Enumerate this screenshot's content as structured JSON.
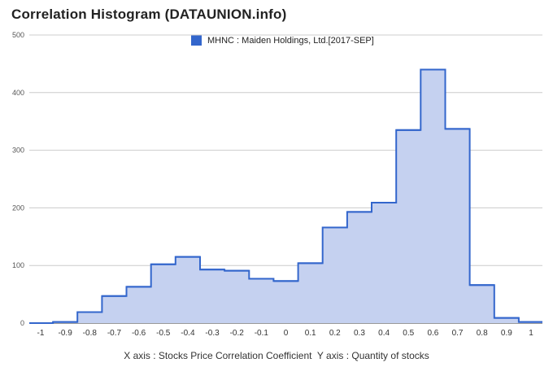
{
  "title": "Correlation Histogram (DATAUNION.info)",
  "legend_label": "MHNC : Maiden Holdings, Ltd.[2017-SEP]",
  "footer_label": "X axis : Stocks Price Correlation Coefficient  Y axis : Quantity of stocks",
  "chart_data": {
    "type": "area",
    "title": "Correlation Histogram (DATAUNION.info)",
    "xlabel": "X axis : Stocks Price Correlation Coefficient",
    "ylabel": "Y axis : Quantity of stocks",
    "series": [
      {
        "name": "MHNC : Maiden Holdings, Ltd.[2017-SEP]",
        "x": [
          -1,
          -0.9,
          -0.8,
          -0.7,
          -0.6,
          -0.5,
          -0.4,
          -0.3,
          -0.2,
          -0.1,
          0,
          0.1,
          0.2,
          0.3,
          0.4,
          0.5,
          0.6,
          0.7,
          0.8,
          0.9,
          1
        ],
        "values": [
          0,
          2,
          19,
          47,
          63,
          102,
          115,
          93,
          91,
          77,
          73,
          104,
          166,
          193,
          209,
          335,
          440,
          337,
          66,
          9,
          2
        ]
      }
    ],
    "x_ticks": [
      "-1",
      "-0.9",
      "-0.8",
      "-0.7",
      "-0.6",
      "-0.5",
      "-0.4",
      "-0.3",
      "-0.2",
      "-0.1",
      "0",
      "0.1",
      "0.2",
      "0.3",
      "0.4",
      "0.5",
      "0.6",
      "0.7",
      "0.8",
      "0.9",
      "1"
    ],
    "y_ticks": [
      "0",
      "100",
      "200",
      "300",
      "400",
      "500"
    ],
    "xlim": [
      -1,
      1
    ],
    "ylim": [
      0,
      500
    ],
    "grid": true,
    "legend_position": "top",
    "colors": {
      "line": "#3366cc",
      "fill": "#c5d1f0"
    }
  }
}
